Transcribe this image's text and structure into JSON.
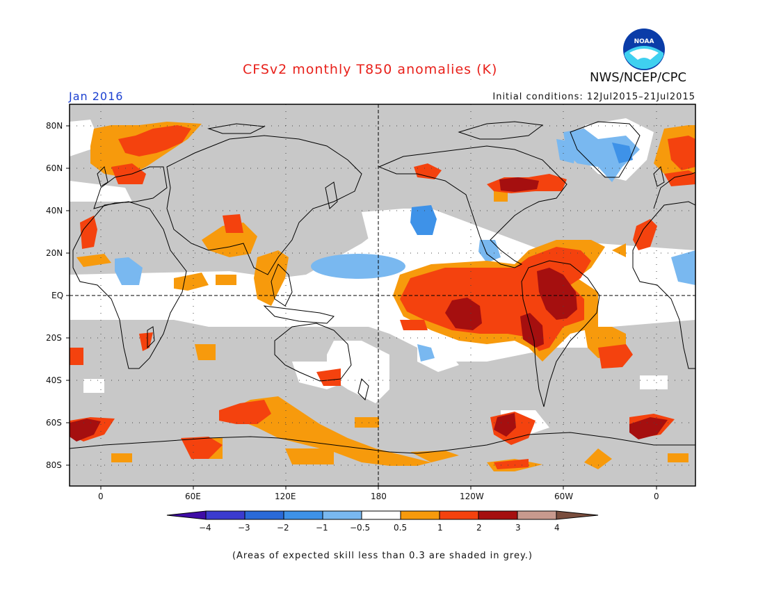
{
  "title": "CFSv2 monthly T850 anomalies (K)",
  "month_label": "Jan 2016",
  "initial_conditions": "Initial conditions: 12Jul2015–21Jul2015",
  "agency": "NWS/NCEP/CPC",
  "logo_text": "NOAA",
  "footnote": "(Areas of expected skill less than 0.3 are shaded in grey.)",
  "lat_labels": [
    "80N",
    "60N",
    "40N",
    "20N",
    "EQ",
    "20S",
    "40S",
    "60S",
    "80S"
  ],
  "lon_labels": [
    "0",
    "60E",
    "120E",
    "180",
    "120W",
    "60W",
    "0"
  ],
  "colorbar": {
    "labels": [
      "−4",
      "−3",
      "−2",
      "−1",
      "−0.5",
      "0.5",
      "1",
      "2",
      "3",
      "4"
    ],
    "colors": [
      "#3f0ca6",
      "#3b3bcf",
      "#2a6ad8",
      "#3e92e8",
      "#79b8f0",
      "#ffffff",
      "#f79a0c",
      "#f4420e",
      "#a50f0f",
      "#c89a8e",
      "#7a4e3e"
    ]
  },
  "colors": {
    "title": "#e8201a",
    "month": "#1a3fd0",
    "grey_low_skill": "#c8c8c8"
  }
}
